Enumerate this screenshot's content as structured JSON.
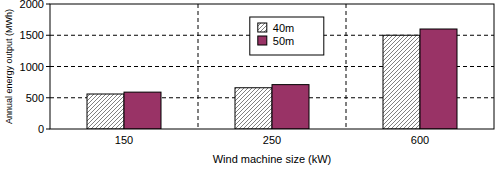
{
  "chart_data": {
    "type": "bar",
    "x_label": "Wind machine size (kW)",
    "y_label": "Annual energy output (MWh)",
    "categories": [
      "150",
      "250",
      "600"
    ],
    "series": [
      {
        "name": "40m",
        "color": "#808080",
        "values": [
          560,
          660,
          1500
        ]
      },
      {
        "name": "50m",
        "color": "#993366",
        "values": [
          590,
          710,
          1600
        ]
      }
    ],
    "ylim": [
      0,
      2000
    ],
    "yticks": [
      0,
      500,
      1000,
      1500,
      2000
    ],
    "grid": true,
    "legend": "top"
  }
}
